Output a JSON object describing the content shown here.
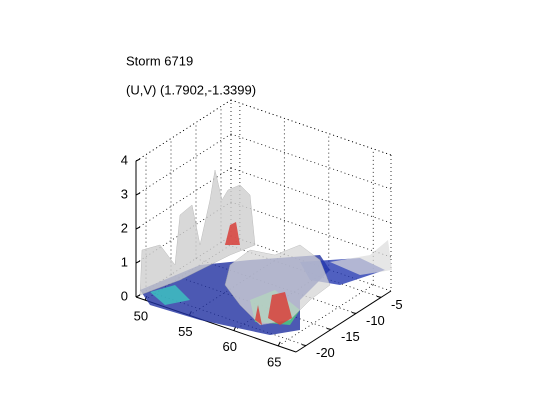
{
  "chart_data": {
    "type": "isosurface3d",
    "title": "Storm 6719",
    "subtitle": "(U,V) (1.7902,-1.3399)",
    "xlim": [
      49,
      67
    ],
    "ylim": [
      -22,
      -3
    ],
    "zlim": [
      0,
      4
    ],
    "xticks": [
      50,
      55,
      60,
      65
    ],
    "yticks": [
      -5,
      -10,
      -15,
      -20
    ],
    "zticks": [
      0,
      1,
      2,
      3,
      4
    ],
    "grid": true
  }
}
